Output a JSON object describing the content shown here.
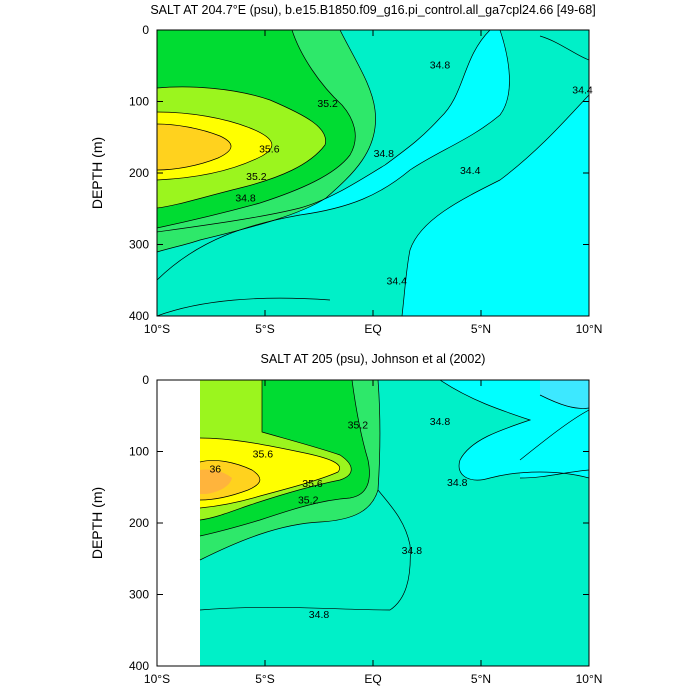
{
  "palette": {
    "lt34_4": "#3de8ff",
    "b34_4_34_8": "#00ffff",
    "b34_8_35_2": "#00f0c8",
    "b35_2_35_6a": "#2ee86a",
    "b35_2_35_6b": "#00dc32",
    "b35_6_36": "#9bf51e",
    "b36_hi": "#ffff00",
    "gt36": "#ffd21e",
    "max": "#ffb43c",
    "contour_line": "#000000"
  },
  "chart_data": [
    {
      "type": "contour",
      "title": "SALT AT 204.7°E (psu), b.e15.B1850.f09_g16.pi_control.all_ga7cpl24.66 [49-68]",
      "ylabel": "DEPTH (m)",
      "xlabel": "",
      "xlim": [
        -10,
        10
      ],
      "ylim": [
        400,
        0
      ],
      "x_ticks": [
        {
          "value": -10,
          "label": "10°S"
        },
        {
          "value": -5,
          "label": "5°S"
        },
        {
          "value": 0,
          "label": "EQ"
        },
        {
          "value": 5,
          "label": "5°N"
        },
        {
          "value": 10,
          "label": "10°N"
        }
      ],
      "y_ticks": [
        0,
        100,
        200,
        300,
        400
      ],
      "contour_levels": [
        34.4,
        34.8,
        35.2,
        35.6,
        36.0
      ],
      "contour_labels": [
        {
          "text": "35.2",
          "x": -2.1,
          "y": 102
        },
        {
          "text": "35.6",
          "x": -4.8,
          "y": 166
        },
        {
          "text": "35.2",
          "x": -5.4,
          "y": 204
        },
        {
          "text": "34.8",
          "x": -5.9,
          "y": 234
        },
        {
          "text": "34.8",
          "x": 0.5,
          "y": 172
        },
        {
          "text": "34.8",
          "x": 3.1,
          "y": 48
        },
        {
          "text": "34.4",
          "x": 4.5,
          "y": 196
        },
        {
          "text": "34.4",
          "x": 9.7,
          "y": 83
        },
        {
          "text": "34.4",
          "x": 1.1,
          "y": 350
        }
      ]
    },
    {
      "type": "contour",
      "title": "SALT AT 205 (psu), Johnson et al (2002)",
      "ylabel": "DEPTH (m)",
      "xlabel": "",
      "xlim": [
        -10,
        10
      ],
      "ylim": [
        400,
        0
      ],
      "data_x_start": -8,
      "x_ticks": [
        {
          "value": -10,
          "label": "10°S"
        },
        {
          "value": -5,
          "label": "5°S"
        },
        {
          "value": 0,
          "label": "EQ"
        },
        {
          "value": 5,
          "label": "5°N"
        },
        {
          "value": 10,
          "label": "10°N"
        }
      ],
      "y_ticks": [
        0,
        100,
        200,
        300,
        400
      ],
      "contour_levels": [
        34.4,
        34.8,
        35.2,
        35.6,
        36.0
      ],
      "contour_labels": [
        {
          "text": "36",
          "x": -7.3,
          "y": 124
        },
        {
          "text": "35.6",
          "x": -5.1,
          "y": 103
        },
        {
          "text": "35.6",
          "x": -2.8,
          "y": 144
        },
        {
          "text": "35.2",
          "x": -3.0,
          "y": 167
        },
        {
          "text": "35.2",
          "x": -0.7,
          "y": 62
        },
        {
          "text": "34.8",
          "x": 3.1,
          "y": 57
        },
        {
          "text": "34.8",
          "x": 3.9,
          "y": 143
        },
        {
          "text": "34.8",
          "x": 1.8,
          "y": 238
        },
        {
          "text": "34.8",
          "x": -2.5,
          "y": 327
        }
      ]
    }
  ]
}
